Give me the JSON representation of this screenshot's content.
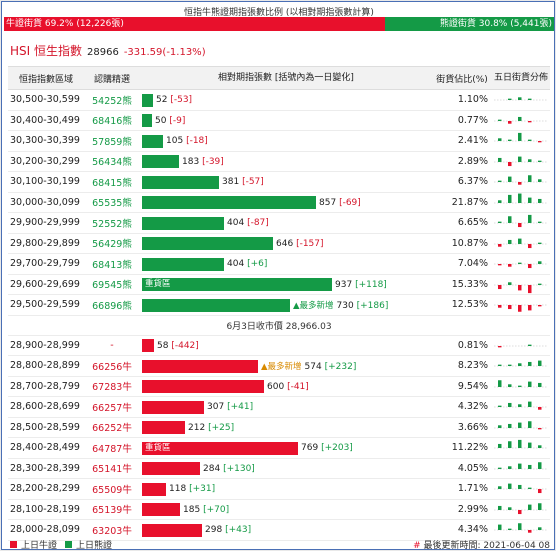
{
  "header": {
    "title": "恒指牛熊證期指張數比例 (以相對期指張數計算)",
    "bull_label": "牛證街貨 69.2% (12,226張)",
    "bear_label": "熊證街貨 30.8% (5,441張)",
    "bull_pct": 69.2
  },
  "index": {
    "name": "HSI 恒生指數",
    "value": "28966",
    "change": "-331.59(-1.13%)"
  },
  "columns": {
    "range": "恒指指數區域",
    "code": "認購精選",
    "bar": "相對期指張數 [括號內為一日變化]",
    "pct": "街貨佔比(%)",
    "five": "五日街貨分佈"
  },
  "bear_rows": [
    {
      "range": "30,500-30,599",
      "code": "54252熊",
      "qty": 52,
      "chg": "[-53]",
      "pct": "1.10%",
      "five": [
        0,
        1,
        2,
        1,
        0
      ]
    },
    {
      "range": "30,400-30,499",
      "code": "68416熊",
      "qty": 50,
      "chg": "[-9]",
      "pct": "0.77%",
      "five": [
        1,
        -2,
        3,
        -1,
        0
      ]
    },
    {
      "range": "30,300-30,399",
      "code": "57859熊",
      "qty": 105,
      "chg": "[-18]",
      "pct": "2.41%",
      "five": [
        2,
        1,
        6,
        1,
        -1
      ]
    },
    {
      "range": "30,200-30,299",
      "code": "56434熊",
      "qty": 183,
      "chg": "[-39]",
      "pct": "2.89%",
      "five": [
        3,
        -3,
        4,
        2,
        1
      ]
    },
    {
      "range": "30,100-30,199",
      "code": "68415熊",
      "qty": 381,
      "chg": "[-57]",
      "pct": "6.37%",
      "five": [
        1,
        4,
        -2,
        5,
        2
      ]
    },
    {
      "range": "30,000-30,099",
      "code": "65535熊",
      "qty": 857,
      "chg": "[-69]",
      "pct": "21.87%",
      "five": [
        2,
        6,
        7,
        4,
        3
      ]
    },
    {
      "range": "29,900-29,999",
      "code": "52552熊",
      "qty": 404,
      "chg": "[-87]",
      "pct": "6.65%",
      "five": [
        1,
        5,
        -3,
        6,
        1
      ]
    },
    {
      "range": "29,800-29,899",
      "code": "56429熊",
      "qty": 646,
      "chg": "[-157]",
      "pct": "10.87%",
      "five": [
        -2,
        3,
        4,
        -3,
        1
      ]
    },
    {
      "range": "29,700-29,799",
      "code": "68413熊",
      "qty": 404,
      "chg": "[+6]",
      "pct": "7.04%",
      "five": [
        -1,
        -2,
        1,
        -3,
        2
      ]
    },
    {
      "range": "29,600-29,699",
      "code": "69545熊",
      "qty": 937,
      "chg": "[+118]",
      "pct": "15.33%",
      "tag": "重貨區",
      "five": [
        -3,
        2,
        -4,
        -6,
        1
      ]
    },
    {
      "range": "29,500-29,599",
      "code": "66896熊",
      "qty": 730,
      "chg": "[+186]",
      "pct": "12.53%",
      "marker": "▲最多新增",
      "five": [
        -2,
        -3,
        -5,
        -4,
        -1
      ]
    }
  ],
  "close_line": "6月3日收市價 28,966.03",
  "bull_rows": [
    {
      "range": "28,900-28,999",
      "code": "-",
      "qty": 58,
      "chg": "[-442]",
      "pct": "0.81%",
      "five": [
        -1,
        0,
        0,
        1,
        0
      ]
    },
    {
      "range": "28,800-28,899",
      "code": "66256牛",
      "qty": 574,
      "chg": "[+232]",
      "pct": "8.23%",
      "marker": "▲最多新增",
      "five": [
        1,
        1,
        2,
        3,
        4
      ]
    },
    {
      "range": "28,700-28,799",
      "code": "67283牛",
      "qty": 600,
      "chg": "[-41]",
      "pct": "9.54%",
      "five": [
        5,
        2,
        1,
        4,
        3
      ]
    },
    {
      "range": "28,600-28,699",
      "code": "66257牛",
      "qty": 307,
      "chg": "[+41]",
      "pct": "4.32%",
      "five": [
        1,
        3,
        2,
        4,
        -2
      ]
    },
    {
      "range": "28,500-28,599",
      "code": "66252牛",
      "qty": 212,
      "chg": "[+25]",
      "pct": "3.66%",
      "five": [
        2,
        3,
        4,
        5,
        -1
      ]
    },
    {
      "range": "28,400-28,499",
      "code": "64787牛",
      "qty": 769,
      "chg": "[+203]",
      "pct": "11.22%",
      "tag": "重貨區",
      "five": [
        3,
        5,
        6,
        4,
        2
      ]
    },
    {
      "range": "28,300-28,399",
      "code": "65141牛",
      "qty": 284,
      "chg": "[+130]",
      "pct": "4.05%",
      "five": [
        1,
        2,
        4,
        3,
        5
      ]
    },
    {
      "range": "28,200-28,299",
      "code": "65509牛",
      "qty": 118,
      "chg": "[+31]",
      "pct": "1.71%",
      "five": [
        2,
        4,
        3,
        1,
        -3
      ]
    },
    {
      "range": "28,100-28,199",
      "code": "65139牛",
      "qty": 185,
      "chg": "[+70]",
      "pct": "2.99%",
      "five": [
        3,
        2,
        -3,
        4,
        5
      ]
    },
    {
      "range": "28,000-28,099",
      "code": "63203牛",
      "qty": 298,
      "chg": "[+43]",
      "pct": "4.34%",
      "five": [
        4,
        1,
        5,
        -2,
        2
      ]
    }
  ],
  "legend": {
    "bull": "上日牛證",
    "bear": "上日熊證"
  },
  "footer": {
    "hash": "#",
    "updated": "最後更新時間: 2021-06-04 08"
  },
  "colors": {
    "bull": "#e8102c",
    "bear": "#149a46"
  }
}
